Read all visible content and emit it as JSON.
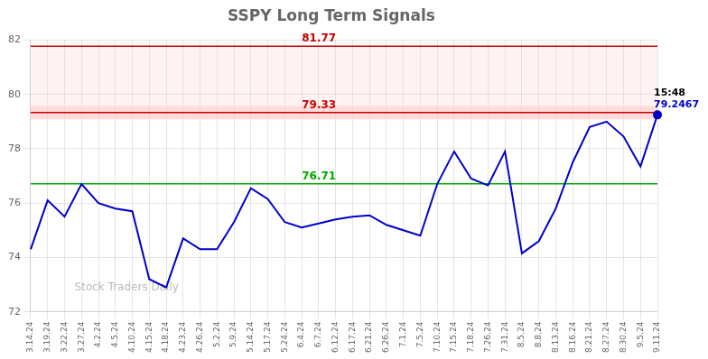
{
  "chart_data": {
    "type": "line",
    "title": "SSPY Long Term Signals",
    "categories": [
      "3.14.24",
      "3.19.24",
      "3.22.24",
      "3.27.24",
      "4.2.24",
      "4.5.24",
      "4.10.24",
      "4.15.24",
      "4.18.24",
      "4.23.24",
      "4.26.24",
      "5.2.24",
      "5.9.24",
      "5.14.24",
      "5.17.24",
      "5.24.24",
      "6.4.24",
      "6.7.24",
      "6.12.24",
      "6.17.24",
      "6.21.24",
      "6.26.24",
      "7.1.24",
      "7.5.24",
      "7.10.24",
      "7.15.24",
      "7.18.24",
      "7.26.24",
      "7.31.24",
      "8.5.24",
      "8.8.24",
      "8.13.24",
      "8.16.24",
      "8.21.24",
      "8.27.24",
      "8.30.24",
      "9.5.24",
      "9.11.24"
    ],
    "values": [
      74.3,
      76.1,
      75.5,
      76.7,
      76.0,
      75.8,
      75.7,
      73.2,
      72.9,
      74.7,
      74.3,
      74.3,
      75.3,
      76.55,
      76.15,
      75.3,
      75.1,
      75.25,
      75.4,
      75.5,
      75.55,
      75.2,
      75.0,
      74.8,
      76.7,
      77.9,
      76.9,
      76.65,
      77.9,
      74.15,
      74.6,
      75.8,
      77.5,
      78.8,
      79.0,
      78.45,
      77.35,
      79.2467
    ],
    "color": "#0000cc",
    "ylim": [
      72,
      82
    ],
    "yticks": [
      72,
      74,
      76,
      78,
      80,
      82
    ],
    "grid": true,
    "hlines": [
      {
        "value": 81.77,
        "label": "81.77",
        "color": "#cc0000"
      },
      {
        "value": 79.33,
        "label": "79.33",
        "color": "#cc0000"
      },
      {
        "value": 76.71,
        "label": "76.71",
        "color": "#00aa00"
      }
    ],
    "bands": [
      {
        "from": 79.08,
        "to": 79.58,
        "color": "#ffcccc"
      },
      {
        "from": 79.58,
        "to": 81.77,
        "color": "#ffcccc"
      }
    ],
    "point_annotations": [
      {
        "x": "9.11.24",
        "y": 79.2467,
        "texts": [
          "15:48",
          "79.2467"
        ],
        "colors": [
          "#000000",
          "#0000cc"
        ]
      }
    ],
    "watermark": {
      "text": "Stock Traders Daily",
      "color": "#bbbbbb"
    }
  }
}
